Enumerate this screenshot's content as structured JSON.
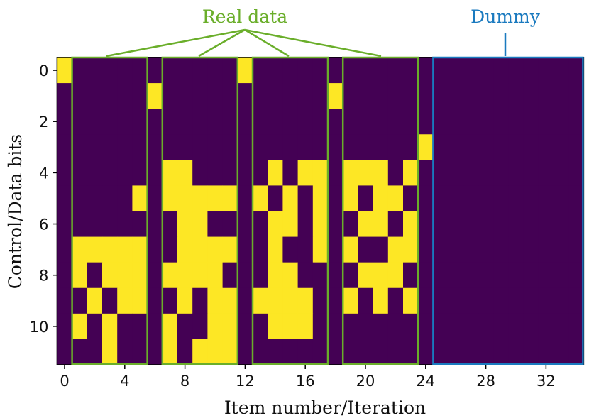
{
  "chart_data": {
    "type": "heatmap",
    "xlabel": "Item number/Iteration",
    "ylabel": "Control/Data bits",
    "annotations": [
      "Real data",
      "Dummy"
    ],
    "colors": [
      "#440154",
      "#fde725"
    ],
    "xlim": [
      -0.5,
      34.5
    ],
    "ylim": [
      11.5,
      -0.5
    ],
    "xticks": [
      0,
      4,
      8,
      12,
      16,
      20,
      24,
      28,
      32
    ],
    "yticks": [
      0,
      2,
      4,
      6,
      8,
      10
    ],
    "z": [
      [
        1,
        0,
        0,
        0,
        0,
        0,
        0,
        0,
        0,
        0,
        0,
        0,
        1,
        0,
        0,
        0,
        0,
        0,
        0,
        0,
        0,
        0,
        0,
        0,
        0,
        0,
        0,
        0,
        0,
        0,
        0,
        0,
        0,
        0,
        0
      ],
      [
        0,
        0,
        0,
        0,
        0,
        0,
        1,
        0,
        0,
        0,
        0,
        0,
        0,
        0,
        0,
        0,
        0,
        0,
        1,
        0,
        0,
        0,
        0,
        0,
        0,
        0,
        0,
        0,
        0,
        0,
        0,
        0,
        0,
        0,
        0
      ],
      [
        0,
        0,
        0,
        0,
        0,
        0,
        0,
        0,
        0,
        0,
        0,
        0,
        0,
        0,
        0,
        0,
        0,
        0,
        0,
        0,
        0,
        0,
        0,
        0,
        0,
        0,
        0,
        0,
        0,
        0,
        0,
        0,
        0,
        0,
        0
      ],
      [
        0,
        0,
        0,
        0,
        0,
        0,
        0,
        0,
        0,
        0,
        0,
        0,
        0,
        0,
        0,
        0,
        0,
        0,
        0,
        0,
        0,
        0,
        0,
        0,
        1,
        0,
        0,
        0,
        0,
        0,
        0,
        0,
        0,
        0,
        0
      ],
      [
        0,
        0,
        0,
        0,
        0,
        0,
        0,
        1,
        1,
        0,
        0,
        0,
        0,
        0,
        1,
        0,
        1,
        1,
        0,
        1,
        1,
        1,
        0,
        1,
        0,
        0,
        0,
        0,
        0,
        0,
        0,
        0,
        0,
        0,
        0
      ],
      [
        0,
        0,
        0,
        0,
        0,
        1,
        0,
        1,
        1,
        1,
        1,
        1,
        0,
        1,
        0,
        1,
        0,
        1,
        0,
        1,
        0,
        1,
        1,
        0,
        0,
        0,
        0,
        0,
        0,
        0,
        0,
        0,
        0,
        0,
        0
      ],
      [
        0,
        0,
        0,
        0,
        0,
        0,
        0,
        0,
        1,
        1,
        0,
        0,
        0,
        0,
        1,
        1,
        0,
        1,
        0,
        0,
        1,
        1,
        0,
        1,
        0,
        0,
        0,
        0,
        0,
        0,
        0,
        0,
        0,
        0,
        0
      ],
      [
        0,
        1,
        1,
        1,
        1,
        1,
        0,
        0,
        1,
        1,
        1,
        1,
        0,
        0,
        1,
        0,
        0,
        1,
        0,
        1,
        0,
        0,
        1,
        1,
        0,
        0,
        0,
        0,
        0,
        0,
        0,
        0,
        0,
        0,
        0
      ],
      [
        0,
        1,
        0,
        1,
        1,
        1,
        0,
        1,
        1,
        1,
        1,
        0,
        0,
        0,
        1,
        1,
        0,
        0,
        0,
        0,
        1,
        1,
        1,
        0,
        0,
        0,
        0,
        0,
        0,
        0,
        0,
        0,
        0,
        0,
        0
      ],
      [
        0,
        0,
        1,
        0,
        1,
        1,
        0,
        0,
        1,
        0,
        1,
        1,
        0,
        1,
        1,
        1,
        1,
        0,
        0,
        1,
        0,
        1,
        0,
        1,
        0,
        0,
        0,
        0,
        0,
        0,
        0,
        0,
        0,
        0,
        0
      ],
      [
        0,
        1,
        0,
        1,
        0,
        0,
        0,
        1,
        0,
        0,
        1,
        1,
        0,
        0,
        1,
        1,
        1,
        0,
        0,
        0,
        0,
        0,
        0,
        0,
        0,
        0,
        0,
        0,
        0,
        0,
        0,
        0,
        0,
        0,
        0
      ],
      [
        0,
        0,
        0,
        1,
        0,
        0,
        0,
        1,
        0,
        1,
        1,
        1,
        0,
        0,
        0,
        0,
        0,
        0,
        0,
        0,
        0,
        0,
        0,
        0,
        0,
        0,
        0,
        0,
        0,
        0,
        0,
        0,
        0,
        0,
        0
      ]
    ]
  }
}
